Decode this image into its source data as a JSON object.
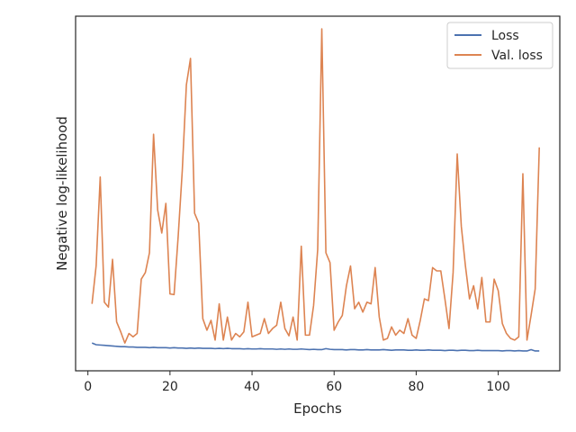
{
  "chart_data": {
    "type": "line",
    "title": "",
    "xlabel": "Epochs",
    "ylabel": "Negative log-likelihood",
    "xlim": [
      -3,
      115
    ],
    "ylim": [
      0,
      100
    ],
    "x_ticks": [
      0,
      20,
      40,
      60,
      80,
      100
    ],
    "x_tick_labels": [
      "0",
      "20",
      "40",
      "60",
      "80",
      "100"
    ],
    "y_ticks_visible": false,
    "grid": false,
    "legend_position": "top-right",
    "series": [
      {
        "name": "Loss",
        "color": "#4c72b0",
        "x": [
          1,
          2,
          3,
          4,
          5,
          6,
          7,
          8,
          9,
          10,
          11,
          12,
          13,
          14,
          15,
          16,
          17,
          18,
          19,
          20,
          21,
          22,
          23,
          24,
          25,
          26,
          27,
          28,
          29,
          30,
          31,
          32,
          33,
          34,
          35,
          36,
          37,
          38,
          39,
          40,
          41,
          42,
          43,
          44,
          45,
          46,
          47,
          48,
          49,
          50,
          51,
          52,
          53,
          54,
          55,
          56,
          57,
          58,
          59,
          60,
          61,
          62,
          63,
          64,
          65,
          66,
          67,
          68,
          69,
          70,
          71,
          72,
          73,
          74,
          75,
          76,
          77,
          78,
          79,
          80,
          81,
          82,
          83,
          84,
          85,
          86,
          87,
          88,
          89,
          90,
          91,
          92,
          93,
          94,
          95,
          96,
          97,
          98,
          99,
          100,
          101,
          102,
          103,
          104,
          105,
          106,
          107,
          108,
          109,
          110
        ],
        "values": [
          4.6,
          4.1,
          4.0,
          3.9,
          3.8,
          3.7,
          3.6,
          3.5,
          3.5,
          3.4,
          3.4,
          3.3,
          3.3,
          3.3,
          3.2,
          3.3,
          3.2,
          3.2,
          3.2,
          3.1,
          3.2,
          3.1,
          3.1,
          3.0,
          3.1,
          3.0,
          3.1,
          3.0,
          3.0,
          3.0,
          2.9,
          3.0,
          2.9,
          3.0,
          2.9,
          2.9,
          2.9,
          2.8,
          2.9,
          2.8,
          2.8,
          2.9,
          2.8,
          2.8,
          2.8,
          2.7,
          2.8,
          2.7,
          2.8,
          2.7,
          2.7,
          2.8,
          2.7,
          2.6,
          2.7,
          2.6,
          2.6,
          2.9,
          2.7,
          2.6,
          2.6,
          2.6,
          2.5,
          2.6,
          2.6,
          2.5,
          2.5,
          2.6,
          2.5,
          2.5,
          2.5,
          2.6,
          2.5,
          2.4,
          2.5,
          2.5,
          2.5,
          2.4,
          2.4,
          2.5,
          2.4,
          2.4,
          2.5,
          2.4,
          2.4,
          2.4,
          2.3,
          2.4,
          2.4,
          2.3,
          2.4,
          2.4,
          2.3,
          2.3,
          2.4,
          2.3,
          2.3,
          2.3,
          2.3,
          2.3,
          2.2,
          2.3,
          2.3,
          2.2,
          2.3,
          2.2,
          2.2,
          2.6,
          2.2,
          2.2
        ]
      },
      {
        "name": "Val. loss",
        "color": "#dd8452",
        "x": [
          1,
          2,
          3,
          4,
          5,
          6,
          7,
          8,
          9,
          10,
          11,
          12,
          13,
          14,
          15,
          16,
          17,
          18,
          19,
          20,
          21,
          22,
          23,
          24,
          25,
          26,
          27,
          28,
          29,
          30,
          31,
          32,
          33,
          34,
          35,
          36,
          37,
          38,
          39,
          40,
          41,
          42,
          43,
          44,
          45,
          46,
          47,
          48,
          49,
          50,
          51,
          52,
          53,
          54,
          55,
          56,
          57,
          58,
          59,
          60,
          61,
          62,
          63,
          64,
          65,
          66,
          67,
          68,
          69,
          70,
          71,
          72,
          73,
          74,
          75,
          76,
          77,
          78,
          79,
          80,
          81,
          82,
          83,
          84,
          85,
          86,
          87,
          88,
          89,
          90,
          91,
          92,
          93,
          94,
          95,
          96,
          97,
          98,
          99,
          100,
          101,
          102,
          103,
          104,
          105,
          106,
          107,
          108,
          109,
          110
        ],
        "values": [
          16.5,
          28,
          55,
          17,
          15.5,
          30,
          11,
          8,
          4.6,
          7.5,
          6.5,
          7.5,
          24,
          26,
          32,
          68,
          45,
          38,
          47,
          19.5,
          19.3,
          37,
          57,
          83,
          91,
          44,
          41,
          12,
          8.5,
          11.5,
          5.5,
          16.5,
          5.5,
          12.5,
          5.5,
          7.5,
          6.5,
          8,
          17,
          6.5,
          7,
          7.5,
          12,
          7.5,
          9,
          10,
          17,
          9,
          6.8,
          12.5,
          5.5,
          34,
          7,
          7,
          16,
          33,
          100,
          32,
          29,
          8.5,
          11,
          13,
          22,
          28,
          15,
          17,
          14,
          17,
          16.5,
          27.5,
          12.5,
          5.5,
          6,
          9.5,
          7,
          8.5,
          7.5,
          12,
          7,
          6,
          11.5,
          18,
          17.5,
          27.5,
          26.5,
          26.5,
          18,
          9,
          26,
          62,
          40,
          28,
          18,
          22,
          15,
          24.5,
          11,
          11,
          24,
          20.5,
          10.5,
          7.5,
          6,
          5.5,
          6.5,
          56,
          5.5,
          13,
          21,
          64
        ]
      }
    ]
  }
}
